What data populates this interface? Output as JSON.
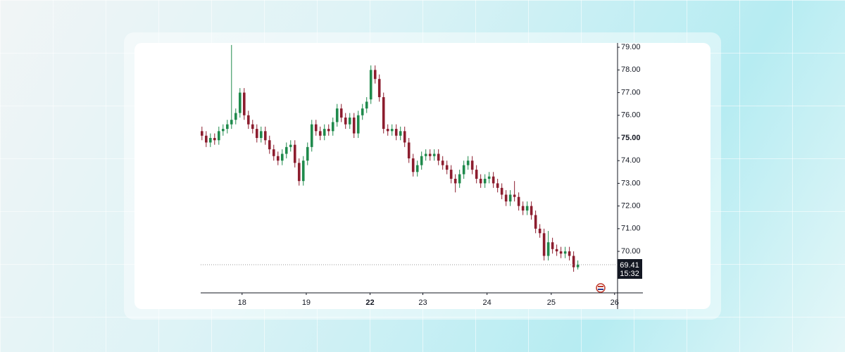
{
  "chart_data": {
    "type": "candlestick",
    "up_color": "#1f8a4c",
    "down_color": "#8c1d2e",
    "open": [
      75.3,
      75.1,
      74.8,
      75.0,
      74.9,
      75.3,
      75.4,
      75.6,
      75.8,
      76.1,
      77.0,
      76.0,
      75.6,
      75.4,
      75.0,
      75.3,
      74.9,
      74.5,
      74.2,
      74.0,
      74.3,
      74.6,
      74.7,
      73.9,
      73.1,
      74.0,
      74.6,
      75.6,
      75.3,
      75.1,
      75.4,
      75.3,
      75.7,
      76.3,
      75.9,
      75.6,
      75.9,
      75.2,
      76.0,
      76.3,
      76.7,
      78.0,
      77.6,
      76.8,
      75.4,
      75.3,
      75.4,
      75.1,
      75.3,
      74.8,
      74.1,
      73.5,
      73.8,
      74.2,
      74.3,
      74.2,
      74.3,
      74.0,
      73.8,
      73.6,
      73.2,
      73.0,
      73.4,
      73.8,
      74.0,
      73.6,
      73.2,
      73.0,
      73.2,
      73.3,
      73.0,
      72.8,
      72.5,
      72.2,
      72.5,
      72.4,
      72.0,
      71.8,
      72.0,
      71.6,
      71.0,
      70.8,
      69.8,
      70.4,
      70.1,
      70.0,
      69.9,
      70.0,
      69.8,
      69.3
    ],
    "high": [
      75.5,
      75.3,
      75.2,
      75.2,
      75.5,
      75.6,
      75.8,
      79.1,
      76.3,
      77.2,
      77.2,
      76.2,
      75.8,
      75.6,
      75.5,
      75.5,
      75.1,
      74.7,
      74.4,
      74.5,
      74.8,
      74.9,
      74.9,
      74.1,
      74.2,
      74.8,
      75.8,
      75.8,
      75.5,
      75.6,
      75.6,
      75.9,
      76.5,
      76.5,
      76.1,
      76.1,
      76.1,
      76.2,
      76.5,
      76.8,
      78.2,
      78.2,
      77.8,
      77.0,
      75.6,
      75.6,
      75.6,
      75.5,
      75.5,
      75.0,
      74.3,
      74.0,
      74.4,
      74.5,
      74.5,
      74.5,
      74.5,
      74.2,
      74.0,
      73.8,
      73.4,
      73.6,
      74.0,
      74.2,
      74.2,
      73.8,
      73.4,
      73.4,
      73.5,
      73.5,
      73.2,
      73.0,
      72.7,
      72.7,
      73.1,
      72.6,
      72.2,
      72.2,
      72.2,
      71.8,
      71.2,
      71.0,
      70.9,
      70.6,
      70.3,
      70.2,
      70.2,
      70.2,
      70.0,
      69.6
    ],
    "low": [
      74.9,
      74.6,
      74.6,
      74.7,
      74.7,
      75.1,
      75.2,
      75.4,
      75.6,
      75.9,
      75.8,
      75.4,
      75.2,
      74.8,
      74.8,
      74.7,
      74.3,
      74.0,
      73.8,
      73.8,
      74.1,
      74.4,
      73.7,
      72.9,
      72.9,
      73.8,
      74.4,
      75.1,
      74.9,
      74.9,
      75.1,
      75.1,
      75.5,
      75.7,
      75.4,
      75.4,
      75.0,
      75.0,
      75.8,
      76.1,
      76.5,
      77.4,
      76.6,
      75.2,
      75.1,
      75.1,
      74.9,
      74.9,
      74.6,
      73.9,
      73.3,
      73.3,
      73.6,
      74.0,
      74.0,
      74.0,
      73.8,
      73.6,
      73.4,
      73.0,
      72.6,
      72.8,
      73.2,
      73.6,
      73.4,
      73.0,
      72.8,
      72.8,
      73.0,
      72.8,
      72.6,
      72.3,
      72.0,
      72.0,
      72.2,
      71.8,
      71.6,
      71.6,
      71.4,
      70.8,
      70.6,
      69.6,
      69.6,
      69.9,
      69.8,
      69.7,
      69.7,
      69.6,
      69.1,
      69.2
    ],
    "close": [
      75.1,
      74.8,
      75.0,
      74.9,
      75.3,
      75.4,
      75.6,
      75.8,
      76.1,
      77.0,
      76.0,
      75.6,
      75.4,
      75.0,
      75.3,
      74.9,
      74.5,
      74.2,
      74.0,
      74.3,
      74.6,
      74.7,
      73.9,
      73.1,
      74.0,
      74.6,
      75.6,
      75.3,
      75.1,
      75.4,
      75.3,
      75.7,
      76.3,
      75.9,
      75.6,
      75.9,
      75.2,
      76.0,
      76.3,
      76.6,
      78.0,
      77.6,
      76.8,
      75.4,
      75.3,
      75.4,
      75.1,
      75.3,
      74.8,
      74.1,
      73.5,
      73.8,
      74.2,
      74.3,
      74.2,
      74.3,
      74.0,
      73.8,
      73.6,
      73.2,
      73.0,
      73.4,
      73.8,
      74.0,
      73.6,
      73.2,
      73.0,
      73.2,
      73.3,
      73.0,
      72.8,
      72.5,
      72.2,
      72.5,
      72.4,
      72.0,
      71.8,
      72.0,
      71.6,
      71.0,
      70.8,
      69.8,
      70.4,
      70.1,
      70.0,
      69.9,
      70.0,
      69.8,
      69.3,
      69.41
    ],
    "xlim": [
      -0.3,
      98.4
    ],
    "xticks": [
      {
        "value": 9.5,
        "label": "18"
      },
      {
        "value": 24.7,
        "label": "19"
      },
      {
        "value": 39.8,
        "label": "22"
      },
      {
        "value": 52.3,
        "label": "23"
      },
      {
        "value": 67.5,
        "label": "24"
      },
      {
        "value": 82.7,
        "label": "25"
      },
      {
        "value": 97.7,
        "label": "26"
      }
    ],
    "ylim": [
      68.17,
      79.19
    ],
    "yticks": [
      {
        "value": 79,
        "label": "79.00"
      },
      {
        "value": 78,
        "label": "78.00"
      },
      {
        "value": 77,
        "label": "77.00"
      },
      {
        "value": 76,
        "label": "76.00"
      },
      {
        "value": 75,
        "label": "75.00"
      },
      {
        "value": 74,
        "label": "74.00"
      },
      {
        "value": 73,
        "label": "73.00"
      },
      {
        "value": 72,
        "label": "72.00"
      },
      {
        "value": 71,
        "label": "71.00"
      },
      {
        "value": 70,
        "label": "70.00"
      }
    ],
    "last_price": 69.41,
    "countdown": "15:32"
  }
}
